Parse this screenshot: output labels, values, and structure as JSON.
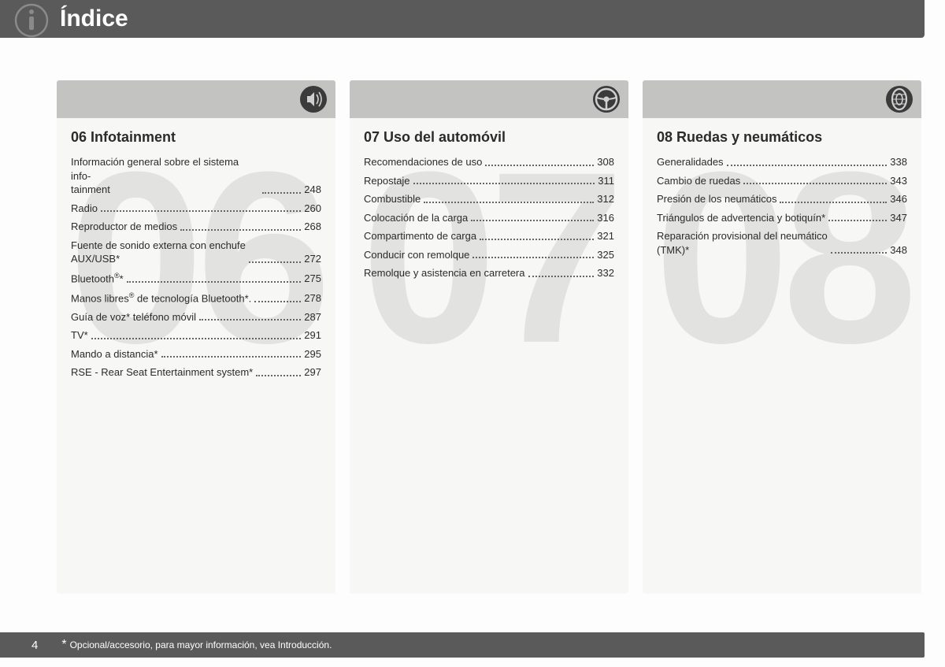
{
  "header": {
    "title": "Índice"
  },
  "columns": [
    {
      "bg_number": "06",
      "title": "06 Infotainment",
      "entries": [
        {
          "label_html": "Información general sobre el sistema info-<br>tainment",
          "page": "248"
        },
        {
          "label_html": "Radio",
          "page": "260"
        },
        {
          "label_html": "Reproductor de medios",
          "page": "268"
        },
        {
          "label_html": "Fuente de sonido externa con enchufe<br>AUX/USB*",
          "page": "272"
        },
        {
          "label_html": "Bluetooth<sup>®</sup>*",
          "page": "275"
        },
        {
          "label_html": "Manos libres<sup>®</sup> de tecnología Bluetooth*.",
          "page": "278"
        },
        {
          "label_html": "Guía de voz* teléfono móvil",
          "page": "287"
        },
        {
          "label_html": "TV*",
          "page": "291"
        },
        {
          "label_html": "Mando a distancia*",
          "page": "295"
        },
        {
          "label_html": "RSE - Rear Seat Entertainment system*",
          "page": "297"
        }
      ]
    },
    {
      "bg_number": "07",
      "title": "07 Uso del automóvil",
      "entries": [
        {
          "label_html": "Recomendaciones de uso",
          "page": "308"
        },
        {
          "label_html": "Repostaje",
          "page": "311"
        },
        {
          "label_html": "Combustible",
          "page": "312"
        },
        {
          "label_html": "Colocación de la carga",
          "page": "316"
        },
        {
          "label_html": "Compartimento de carga",
          "page": "321"
        },
        {
          "label_html": "Conducir con remolque",
          "page": "325"
        },
        {
          "label_html": "Remolque y asistencia en carretera",
          "page": "332"
        }
      ]
    },
    {
      "bg_number": "08",
      "title": "08 Ruedas y neumáticos",
      "entries": [
        {
          "label_html": "Generalidades",
          "page": "338"
        },
        {
          "label_html": "Cambio de ruedas",
          "page": "343"
        },
        {
          "label_html": "Presión de los neumáticos",
          "page": "346"
        },
        {
          "label_html": "Triángulos de advertencia y botiquín*",
          "page": "347"
        },
        {
          "label_html": "Reparación provisional del neumático<br>(TMK)*",
          "page": "348"
        }
      ]
    }
  ],
  "footer": {
    "page_number": "4",
    "star": "*",
    "note": "Opcional/accesorio, para mayor información, vea Introducción."
  },
  "colors": {
    "header_bg": "#5a5a5a",
    "col_head_bg": "#c3c3c2",
    "col_bg": "#f7f7f6",
    "bg_number_color": "#e2e2e1",
    "text_color": "#2b2b2b"
  }
}
